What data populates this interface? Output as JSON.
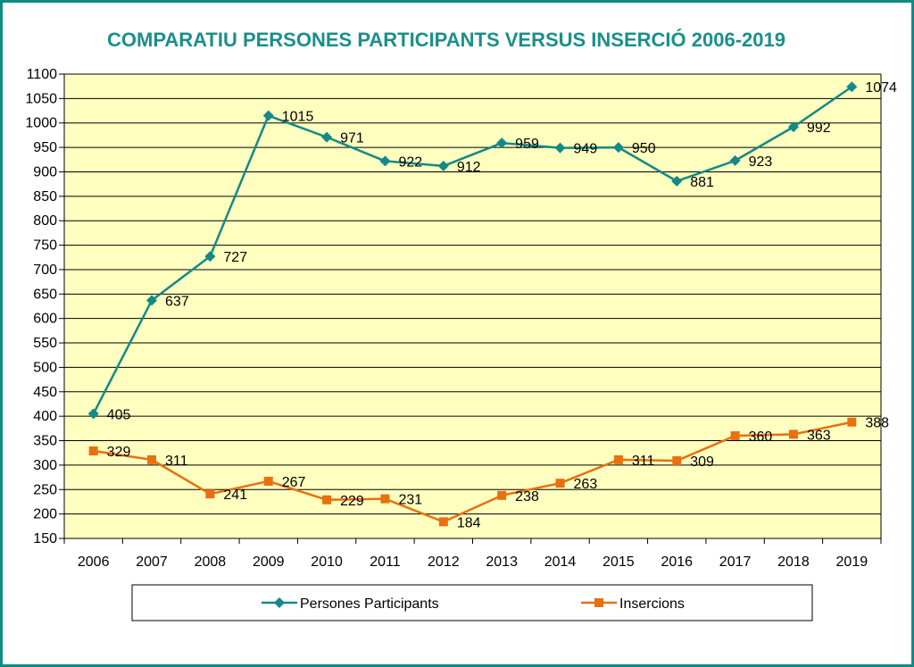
{
  "chart_data": {
    "type": "line",
    "title": "COMPARATIU PERSONES PARTICIPANTS VERSUS INSERCIÓ 2006-2019",
    "categories": [
      "2006",
      "2007",
      "2008",
      "2009",
      "2010",
      "2011",
      "2012",
      "2013",
      "2014",
      "2015",
      "2016",
      "2017",
      "2018",
      "2019"
    ],
    "ylim": [
      150,
      1100
    ],
    "ytick_step": 50,
    "grid": true,
    "legend_position": "bottom",
    "plot_background": "#ffffc0",
    "series": [
      {
        "name": "Persones Participants",
        "color": "#138a86",
        "marker": "diamond",
        "values": [
          405,
          637,
          727,
          1015,
          971,
          922,
          912,
          959,
          949,
          950,
          881,
          923,
          992,
          1074
        ]
      },
      {
        "name": "Insercions",
        "color": "#e8700f",
        "marker": "square",
        "values": [
          329,
          311,
          241,
          267,
          229,
          231,
          184,
          238,
          263,
          311,
          309,
          360,
          363,
          388
        ]
      }
    ]
  }
}
